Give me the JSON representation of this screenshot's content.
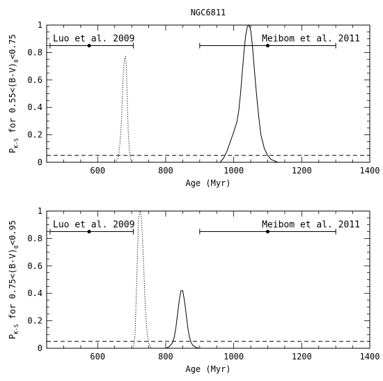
{
  "title": "NGC6811",
  "chart_data": [
    {
      "type": "line",
      "ylabel_main": "P",
      "ylabel_sub": "K-S",
      "ylabel_rest": " for 0.55<(B-V)",
      "ylabel_sub2": "0",
      "ylabel_tail": "<0.75",
      "xlabel": "Age (Myr)",
      "xlim": [
        450,
        1400
      ],
      "ylim": [
        0,
        1
      ],
      "xticks": [
        600,
        800,
        1000,
        1200,
        1400
      ],
      "yticks": [
        0,
        0.2,
        0.4,
        0.6,
        0.8,
        1
      ],
      "threshold": 0.05,
      "series": [
        {
          "style": "dotted",
          "x": [
            650,
            660,
            665,
            670,
            673,
            676,
            679,
            682,
            684,
            686,
            688,
            690,
            693,
            696,
            700,
            705
          ],
          "y": [
            0.0,
            0.03,
            0.12,
            0.3,
            0.5,
            0.68,
            0.76,
            0.77,
            0.7,
            0.55,
            0.38,
            0.22,
            0.1,
            0.03,
            0.01,
            0.0
          ]
        },
        {
          "style": "solid",
          "x": [
            960,
            970,
            980,
            990,
            1000,
            1010,
            1015,
            1020,
            1025,
            1030,
            1035,
            1040,
            1045,
            1050,
            1055,
            1060,
            1065,
            1070,
            1075,
            1080,
            1090,
            1100,
            1110,
            1120,
            1130
          ],
          "y": [
            0.0,
            0.03,
            0.08,
            0.15,
            0.22,
            0.3,
            0.38,
            0.5,
            0.65,
            0.8,
            0.92,
            0.99,
            1.0,
            0.96,
            0.85,
            0.7,
            0.55,
            0.42,
            0.3,
            0.2,
            0.1,
            0.05,
            0.02,
            0.01,
            0.0
          ]
        }
      ],
      "errorbars": [
        {
          "label": "Luo et al. 2009",
          "center": 575,
          "low": 460,
          "high": 705,
          "y": 0.85
        },
        {
          "label": "Meibom et al. 2011",
          "center": 1100,
          "low": 900,
          "high": 1300,
          "y": 0.85
        }
      ]
    },
    {
      "type": "line",
      "ylabel_main": "P",
      "ylabel_sub": "K-S",
      "ylabel_rest": " for 0.75<(B-V)",
      "ylabel_sub2": "0",
      "ylabel_tail": "<0.95",
      "xlabel": "Age (Myr)",
      "xlim": [
        450,
        1400
      ],
      "ylim": [
        0,
        1
      ],
      "xticks": [
        600,
        800,
        1000,
        1200,
        1400
      ],
      "yticks": [
        0,
        0.2,
        0.4,
        0.6,
        0.8,
        1
      ],
      "threshold": 0.05,
      "series": [
        {
          "style": "dotted",
          "x": [
            705,
            710,
            715,
            720,
            725,
            728,
            732,
            736,
            740,
            745,
            750,
            755,
            760
          ],
          "y": [
            0.0,
            0.1,
            0.5,
            0.95,
            1.0,
            0.97,
            0.8,
            0.55,
            0.3,
            0.12,
            0.04,
            0.01,
            0.0
          ]
        },
        {
          "style": "solid",
          "x": [
            800,
            810,
            820,
            825,
            830,
            835,
            840,
            845,
            850,
            855,
            860,
            865,
            870,
            875,
            880,
            890,
            900
          ],
          "y": [
            0.0,
            0.01,
            0.04,
            0.08,
            0.15,
            0.25,
            0.35,
            0.42,
            0.42,
            0.35,
            0.25,
            0.15,
            0.08,
            0.04,
            0.02,
            0.005,
            0.0
          ]
        }
      ],
      "errorbars": [
        {
          "label": "Luo et al. 2009",
          "center": 575,
          "low": 460,
          "high": 705,
          "y": 0.85
        },
        {
          "label": "Meibom et al. 2011",
          "center": 1100,
          "low": 900,
          "high": 1300,
          "y": 0.85
        }
      ]
    }
  ]
}
